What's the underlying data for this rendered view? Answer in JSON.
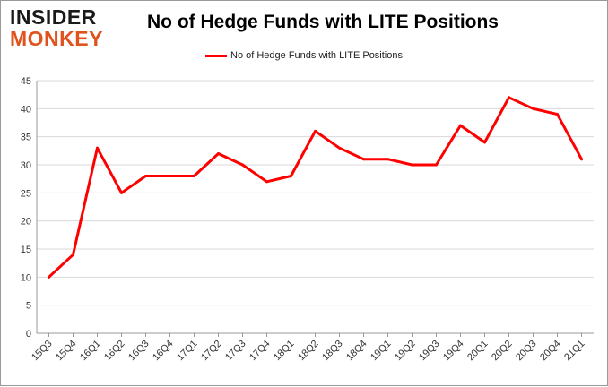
{
  "logo": {
    "line1": "INSIDER",
    "line2": "MONKEY"
  },
  "chart_data": {
    "type": "line",
    "title": "No of Hedge Funds with LITE Positions",
    "xlabel": "",
    "ylabel": "",
    "categories": [
      "15Q3",
      "15Q4",
      "16Q1",
      "16Q2",
      "16Q3",
      "16Q4",
      "17Q1",
      "17Q2",
      "17Q3",
      "17Q4",
      "18Q1",
      "18Q2",
      "18Q3",
      "18Q4",
      "19Q1",
      "19Q2",
      "19Q3",
      "19Q4",
      "20Q1",
      "20Q2",
      "20Q3",
      "20Q4",
      "21Q1"
    ],
    "series": [
      {
        "name": "No of Hedge Funds with LITE Positions",
        "values": [
          10,
          14,
          33,
          25,
          28,
          28,
          28,
          32,
          30,
          27,
          28,
          36,
          33,
          31,
          31,
          30,
          30,
          37,
          34,
          42,
          40,
          39,
          31
        ]
      }
    ],
    "ylim": [
      0,
      45
    ],
    "yticks": [
      0,
      5,
      10,
      15,
      20,
      25,
      30,
      35,
      40,
      45
    ],
    "grid": true,
    "legend_position": "top",
    "color": "#ff0000"
  }
}
